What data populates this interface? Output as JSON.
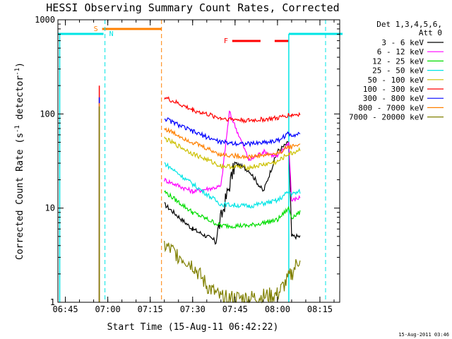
{
  "chart_data": {
    "type": "line",
    "title": "HESSI Observing Summary Count Rates, Corrected",
    "xlabel": "Start Time (15-Aug-11 06:42:22)",
    "ylabel": "Corrected Count Rate (s⁻¹ detector⁻¹)",
    "ylabel_parts": [
      "Corrected Count Rate (s",
      "-1",
      " detector",
      "-1",
      ")"
    ],
    "y_scale": "log",
    "ylim": [
      1,
      1000
    ],
    "xlim": [
      "06:42:22",
      "08:22:00"
    ],
    "x_ticks": [
      "06:45",
      "07:00",
      "07:15",
      "07:30",
      "07:45",
      "08:00",
      "08:15"
    ],
    "y_ticks": [
      "1",
      "10",
      "100",
      "1000"
    ],
    "legend_title": [
      "Det 1,3,4,5,6,",
      "Att 0"
    ],
    "legend_position": "right",
    "footer_timestamp": "15-Aug-2011 03:46",
    "annotations": {
      "saa": {
        "label": "S",
        "color": "#ff8000",
        "start": "06:58",
        "end": "07:19"
      },
      "night": {
        "label": "N",
        "color": "#00e5e5",
        "start": "06:43",
        "end": "06:59"
      },
      "night2": {
        "start": "08:04",
        "end": "08:22"
      },
      "flare": {
        "label": "F",
        "color": "#ff0000",
        "segments": [
          [
            "07:44",
            "07:54"
          ],
          [
            "07:59",
            "08:04"
          ]
        ]
      },
      "dashed_lines": [
        {
          "time": "06:59",
          "color": "#00e5e5"
        },
        {
          "time": "07:19",
          "color": "#ff8000"
        },
        {
          "time": "08:17",
          "color": "#00e5e5"
        }
      ],
      "solid_verticals": [
        {
          "time": "06:43",
          "color": "#00e5e5"
        },
        {
          "time": "08:04",
          "color": "#00e5e5"
        }
      ]
    },
    "series": [
      {
        "name": "3 - 6 keV",
        "color": "#000000",
        "x": [
          "07:20",
          "07:30",
          "07:38",
          "07:45",
          "07:50",
          "07:55",
          "08:00",
          "08:04",
          "08:05",
          "08:08"
        ],
        "values": [
          11,
          6,
          4.5,
          30,
          25,
          15,
          40,
          50,
          5,
          5
        ]
      },
      {
        "name": "6 - 12 keV",
        "color": "#ff00ff",
        "x": [
          "07:20",
          "07:30",
          "07:40",
          "07:43",
          "07:50",
          "07:55",
          "08:00",
          "08:04",
          "08:05",
          "08:08"
        ],
        "values": [
          20,
          15,
          17,
          105,
          32,
          40,
          35,
          50,
          12,
          13
        ]
      },
      {
        "name": "12 - 25 keV",
        "color": "#00dd00",
        "x": [
          "07:20",
          "07:30",
          "07:40",
          "07:50",
          "08:00",
          "08:04",
          "08:05",
          "08:08"
        ],
        "values": [
          15,
          9,
          6.5,
          6.5,
          7.5,
          10,
          8,
          9
        ]
      },
      {
        "name": "25 - 50 keV",
        "color": "#00e5e5",
        "x": [
          "07:20",
          "07:30",
          "07:40",
          "07:50",
          "08:00",
          "08:04",
          "08:05",
          "08:08"
        ],
        "values": [
          30,
          18,
          11,
          10.5,
          12,
          15,
          14,
          15
        ]
      },
      {
        "name": "50 - 100 keV",
        "color": "#ccc000",
        "x": [
          "07:20",
          "07:30",
          "07:40",
          "07:50",
          "08:00",
          "08:04",
          "08:05",
          "08:08"
        ],
        "values": [
          55,
          38,
          28,
          27,
          31,
          38,
          38,
          42
        ]
      },
      {
        "name": "100 - 300 keV",
        "color": "#ff0000",
        "x": [
          "06:57",
          "07:20",
          "07:30",
          "07:40",
          "07:50",
          "08:00",
          "08:04",
          "08:05",
          "08:08"
        ],
        "values": [
          200,
          150,
          110,
          90,
          85,
          90,
          98,
          97,
          100
        ]
      },
      {
        "name": "300 - 800 keV",
        "color": "#0000ff",
        "x": [
          "06:57",
          "07:20",
          "07:30",
          "07:40",
          "07:50",
          "08:00",
          "08:04",
          "08:05",
          "08:08"
        ],
        "values": [
          150,
          90,
          65,
          50,
          48,
          52,
          62,
          60,
          62
        ]
      },
      {
        "name": "800 - 7000 keV",
        "color": "#ff8000",
        "x": [
          "06:57",
          "07:20",
          "07:30",
          "07:40",
          "07:50",
          "08:00",
          "08:04",
          "08:05",
          "08:08"
        ],
        "values": [
          130,
          70,
          50,
          37,
          35,
          38,
          45,
          45,
          48
        ]
      },
      {
        "name": "7000 - 20000 keV",
        "color": "#808000",
        "x": [
          "06:57",
          "07:20",
          "07:30",
          "07:35",
          "07:40",
          "07:50",
          "08:00",
          "08:05",
          "08:08"
        ],
        "values": [
          120,
          4,
          2.5,
          1.5,
          1.1,
          1.1,
          1.2,
          2,
          3
        ]
      }
    ]
  }
}
